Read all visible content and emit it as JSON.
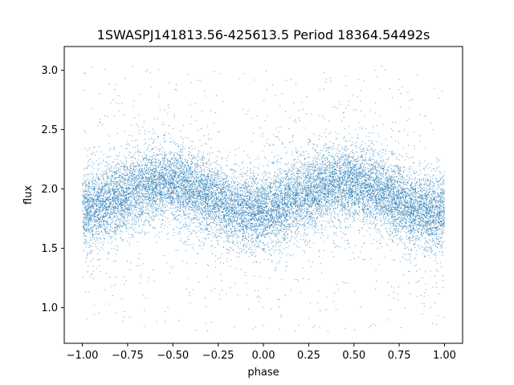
{
  "chart_data": {
    "type": "scatter",
    "title": "1SWASPJ141813.56-425613.5 Period 18364.54492s",
    "xlabel": "phase",
    "ylabel": "flux",
    "xlim": [
      -1.1,
      1.1
    ],
    "ylim": [
      0.7,
      3.2
    ],
    "xticks": [
      -1.0,
      -0.75,
      -0.5,
      -0.25,
      0.0,
      0.25,
      0.5,
      0.75,
      1.0
    ],
    "xtick_labels": [
      "−1.00",
      "−0.75",
      "−0.50",
      "−0.25",
      "0.00",
      "0.25",
      "0.50",
      "0.75",
      "1.00"
    ],
    "yticks": [
      1.0,
      1.5,
      2.0,
      2.5,
      3.0
    ],
    "ytick_labels": [
      "1.0",
      "1.5",
      "2.0",
      "2.5",
      "3.0"
    ],
    "grid": false,
    "series_color": "#1f77b4",
    "trend": {
      "x_range": [
        -1.0,
        1.0
      ],
      "mean_flux": 1.93,
      "amplitude": 0.12,
      "peak_phase": [
        -0.55,
        0.45
      ],
      "trough_phase": [
        -0.05,
        0.95
      ],
      "scatter_sigma": 0.15,
      "outlier_range": [
        0.8,
        3.05
      ]
    },
    "n_points": 16000
  }
}
